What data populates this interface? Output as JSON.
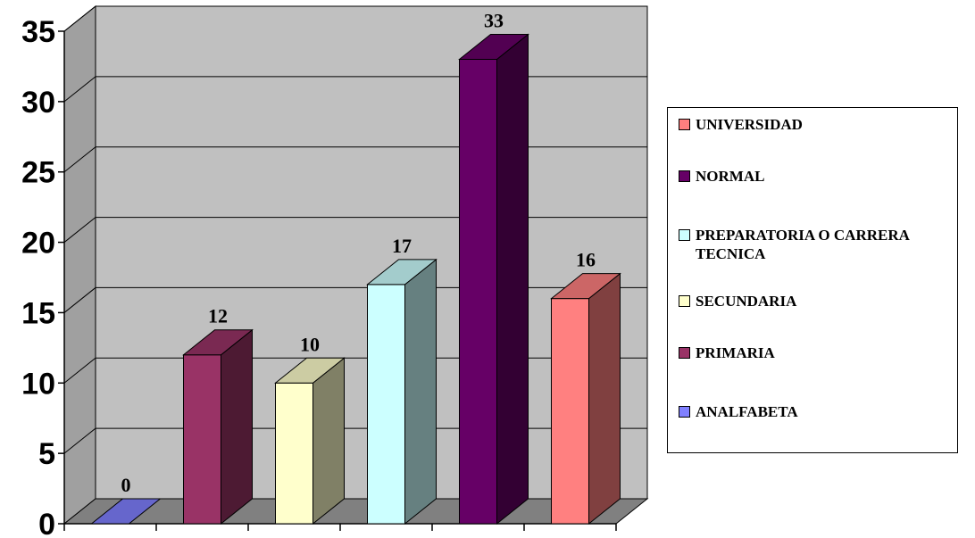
{
  "chart_data": {
    "type": "bar",
    "categories": [
      "ANALFABETA",
      "PRIMARIA",
      "SECUNDARIA",
      "PREPARATORIA O CARRERA TECNICA",
      "NORMAL",
      "UNIVERSIDAD"
    ],
    "values": [
      0,
      12,
      10,
      17,
      33,
      16
    ],
    "data_labels": [
      "0",
      "12",
      "10",
      "17",
      "33",
      "16"
    ],
    "colors": [
      "#8080FF",
      "#993366",
      "#FFFFCC",
      "#CCFFFF",
      "#660066",
      "#FF8080"
    ],
    "ylim": [
      0,
      35
    ],
    "yticks": [
      "0",
      "5",
      "10",
      "15",
      "20",
      "25",
      "30",
      "35"
    ],
    "grid": true,
    "legend_position": "right",
    "legend": [
      {
        "label": "UNIVERSIDAD",
        "color": "#FF8080"
      },
      {
        "label": "NORMAL",
        "color": "#660066"
      },
      {
        "label": "PREPARATORIA O CARRERA TECNICA",
        "color": "#CCFFFF"
      },
      {
        "label": "SECUNDARIA",
        "color": "#FFFFCC"
      },
      {
        "label": "PRIMARIA",
        "color": "#993366"
      },
      {
        "label": "ANALFABETA",
        "color": "#8080FF"
      }
    ]
  }
}
